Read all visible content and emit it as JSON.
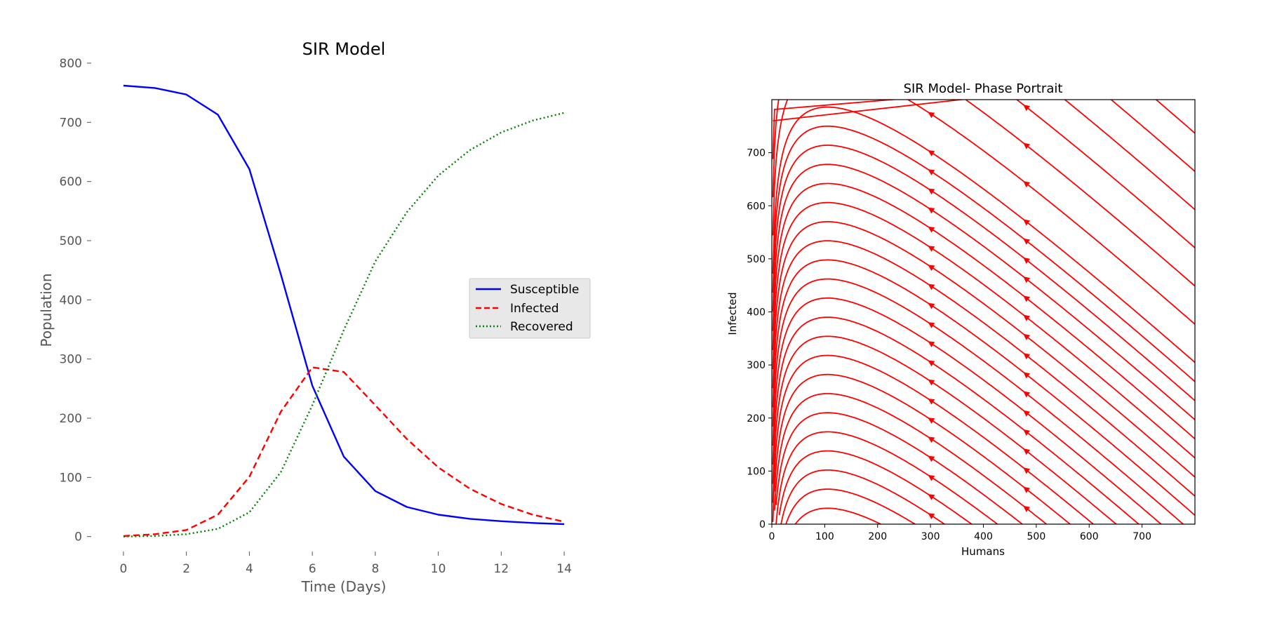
{
  "chart_data": [
    {
      "type": "line",
      "title": "SIR Model",
      "xlabel": "Time (Days)",
      "ylabel": "Population",
      "xlim": [
        -0.8,
        14.8
      ],
      "ylim": [
        -30,
        800
      ],
      "xticks": [
        0,
        2,
        4,
        6,
        8,
        10,
        12,
        14
      ],
      "yticks": [
        0,
        100,
        200,
        300,
        400,
        500,
        600,
        700,
        800
      ],
      "grid": false,
      "legend_position": "center-right",
      "x": [
        0,
        1,
        2,
        3,
        4,
        5,
        6,
        7,
        8,
        9,
        10,
        11,
        12,
        13,
        14
      ],
      "series": [
        {
          "name": "Susceptible",
          "color": "#0000ff",
          "style": "solid",
          "values": [
            762,
            758,
            747,
            713,
            621,
            443,
            255,
            135,
            77,
            50,
            37,
            30,
            26,
            23,
            21
          ]
        },
        {
          "name": "Infected",
          "color": "#ff0000",
          "style": "dashed",
          "values": [
            1,
            4,
            11,
            37,
            101,
            211,
            286,
            278,
            222,
            165,
            117,
            81,
            55,
            37,
            25
          ]
        },
        {
          "name": "Recovered",
          "color": "#008000",
          "style": "dotted",
          "values": [
            0,
            1,
            4,
            13,
            41,
            109,
            222,
            349,
            465,
            548,
            610,
            653,
            683,
            703,
            716
          ]
        }
      ]
    },
    {
      "type": "streamplot",
      "title": "SIR Model- Phase Portrait",
      "xlabel": "Humans",
      "ylabel": "Infected",
      "xlim": [
        0,
        800
      ],
      "ylim": [
        0,
        800
      ],
      "xticks": [
        0,
        100,
        200,
        300,
        400,
        500,
        600,
        700
      ],
      "yticks": [
        0,
        100,
        200,
        300,
        400,
        500,
        600,
        700
      ],
      "color": "#ff0000",
      "beta_over_gamma": 0.0095
    }
  ]
}
